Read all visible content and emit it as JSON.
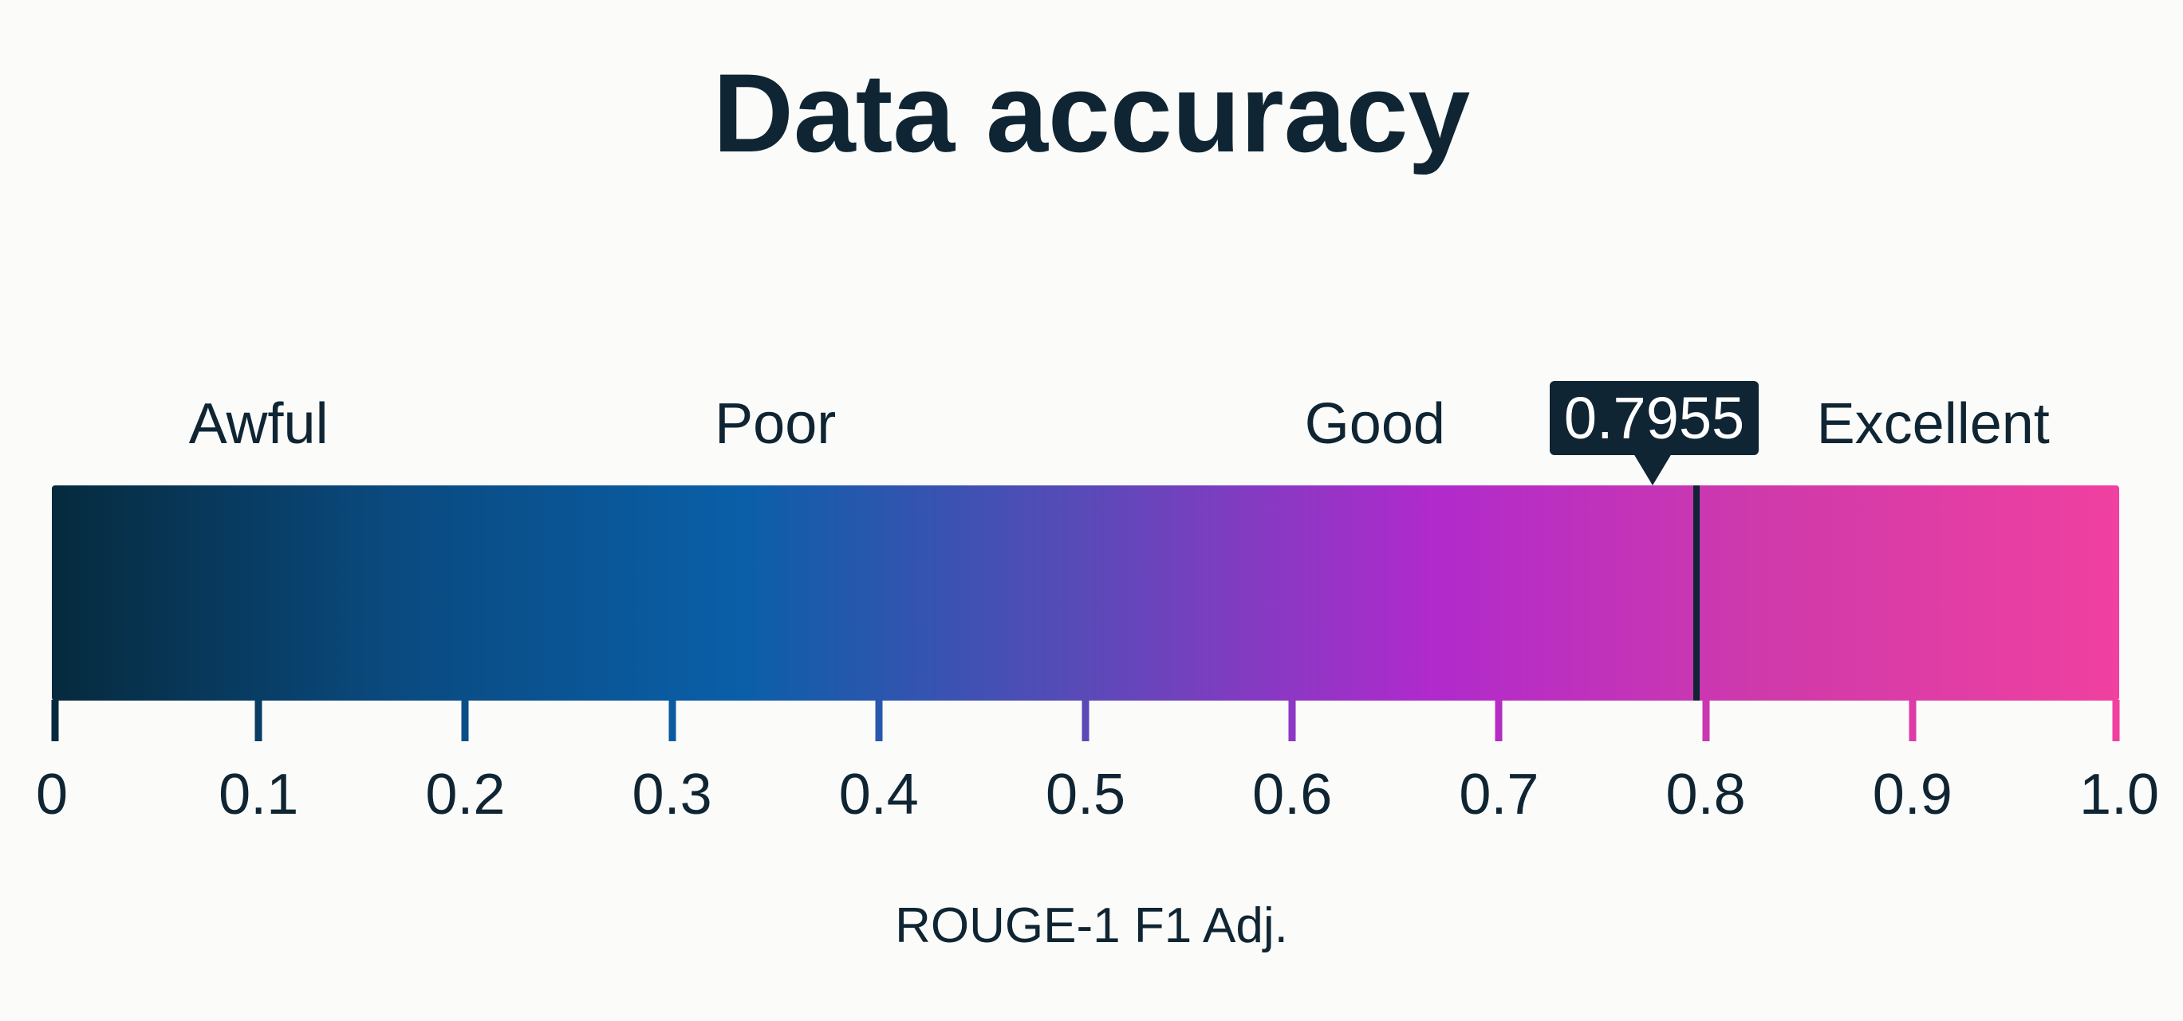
{
  "chart_data": {
    "type": "gauge",
    "title": "Data accuracy",
    "xlabel": "ROUGE-1 F1 Adj.",
    "xlim": [
      0,
      1.0
    ],
    "ticks": [
      0,
      0.1,
      0.2,
      0.3,
      0.4,
      0.5,
      0.6,
      0.7,
      0.8,
      0.9,
      1.0
    ],
    "tick_labels": [
      "0",
      "0.1",
      "0.2",
      "0.3",
      "0.4",
      "0.5",
      "0.6",
      "0.7",
      "0.8",
      "0.9",
      "1.0"
    ],
    "categories": [
      {
        "label": "Awful",
        "center": 0.1
      },
      {
        "label": "Poor",
        "center": 0.35
      },
      {
        "label": "Good",
        "center": 0.64
      },
      {
        "label": "Excellent",
        "center": 0.91
      }
    ],
    "value": 0.7955,
    "value_label": "0.7955",
    "gradient_colors": [
      "#062a3d",
      "#0a4a80",
      "#0a5fa8",
      "#5a4ab8",
      "#b02acc",
      "#d03aaa",
      "#f040a0"
    ],
    "marker_color": "#0f2533"
  }
}
